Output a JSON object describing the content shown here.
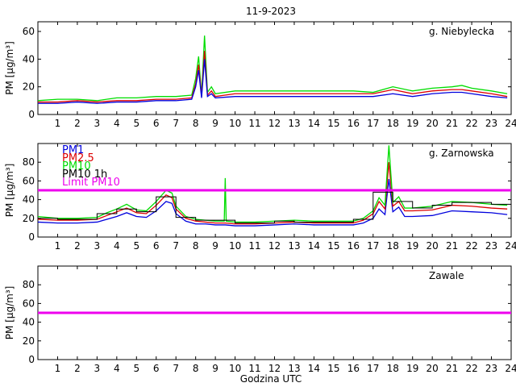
{
  "title": "11-9-2023",
  "xlabel": "Godzina UTC",
  "chart_data": [
    {
      "type": "line",
      "station": "g. Niebylecka",
      "ylabel": "PM [μg/m³]",
      "ylim": [
        0,
        67
      ],
      "yticks": [
        0,
        20,
        40,
        60
      ],
      "xlim": [
        0,
        24
      ],
      "xticks": [
        1,
        2,
        3,
        4,
        5,
        6,
        7,
        8,
        9,
        10,
        11,
        12,
        13,
        14,
        15,
        16,
        17,
        18,
        19,
        20,
        21,
        22,
        23,
        24
      ],
      "legend": false,
      "limit_line": null,
      "series": [
        {
          "key": "pm10",
          "color": "#00dd00",
          "x": [
            0,
            1,
            2,
            3,
            4,
            5,
            6,
            7,
            7.8,
            8.0,
            8.15,
            8.3,
            8.45,
            8.6,
            8.8,
            9,
            10,
            11,
            12,
            13,
            14,
            15,
            16,
            17,
            18,
            19,
            20,
            21,
            21.5,
            22,
            23,
            23.8
          ],
          "y": [
            10,
            11,
            11,
            10,
            12,
            12,
            13,
            13,
            14,
            26,
            42,
            14,
            57,
            16,
            20,
            15,
            17,
            17,
            17,
            17,
            17,
            17,
            17,
            16,
            20,
            17,
            19,
            20,
            21,
            19,
            17,
            15
          ]
        },
        {
          "key": "pm25",
          "color": "#dd0000",
          "x": [
            0,
            1,
            2,
            3,
            4,
            5,
            6,
            7,
            7.8,
            8.0,
            8.15,
            8.3,
            8.45,
            8.6,
            8.8,
            9,
            10,
            11,
            12,
            13,
            14,
            15,
            16,
            17,
            18,
            19,
            20,
            21,
            21.5,
            22,
            23,
            23.8
          ],
          "y": [
            9,
            9,
            10,
            9,
            10,
            10,
            11,
            11,
            12,
            22,
            36,
            13,
            46,
            14,
            17,
            13,
            15,
            15,
            15,
            15,
            15,
            15,
            15,
            15,
            18,
            15,
            17,
            18,
            18,
            17,
            15,
            13
          ]
        },
        {
          "key": "pm1",
          "color": "#0000dd",
          "x": [
            0,
            1,
            2,
            3,
            4,
            5,
            6,
            7,
            7.8,
            8.0,
            8.15,
            8.3,
            8.45,
            8.6,
            8.8,
            9,
            10,
            11,
            12,
            13,
            14,
            15,
            16,
            17,
            18,
            19,
            20,
            21,
            21.5,
            22,
            23,
            23.8
          ],
          "y": [
            8,
            8,
            9,
            8,
            9,
            9,
            10,
            10,
            11,
            20,
            32,
            12,
            40,
            13,
            15,
            12,
            13,
            13,
            13,
            13,
            13,
            13,
            13,
            13,
            15,
            13,
            15,
            16,
            16,
            15,
            13,
            12
          ]
        }
      ]
    },
    {
      "type": "line",
      "station": "g. Zarnowska",
      "ylabel": "PM [μg/m³]",
      "ylim": [
        0,
        100
      ],
      "yticks": [
        0,
        20,
        40,
        60,
        80
      ],
      "xlim": [
        0,
        24
      ],
      "xticks": [
        1,
        2,
        3,
        4,
        5,
        6,
        7,
        8,
        9,
        10,
        11,
        12,
        13,
        14,
        15,
        16,
        17,
        18,
        19,
        20,
        21,
        22,
        23,
        24
      ],
      "legend": true,
      "limit_line": 50,
      "series": [
        {
          "key": "pm1",
          "name": "PM1",
          "color": "#0000dd",
          "x": [
            0,
            1,
            2,
            3,
            3.5,
            4,
            4.5,
            5,
            5.5,
            6,
            6.5,
            6.8,
            7,
            7.5,
            8,
            8.5,
            9,
            9.5,
            10,
            11,
            12,
            13,
            14,
            15,
            16,
            16.5,
            17,
            17.3,
            17.6,
            17.8,
            18,
            18.3,
            18.6,
            19,
            20,
            21,
            22,
            23,
            23.8
          ],
          "y": [
            16,
            15,
            15,
            16,
            19,
            22,
            26,
            22,
            21,
            28,
            38,
            36,
            25,
            17,
            14,
            14,
            13,
            13,
            12,
            12,
            13,
            14,
            13,
            13,
            13,
            15,
            20,
            30,
            24,
            62,
            27,
            32,
            22,
            22,
            23,
            28,
            27,
            26,
            24
          ]
        },
        {
          "key": "pm25",
          "name": "PM2.5",
          "color": "#dd0000",
          "x": [
            0,
            1,
            2,
            3,
            3.5,
            4,
            4.5,
            5,
            5.5,
            6,
            6.5,
            6.8,
            7,
            7.5,
            8,
            8.5,
            9,
            9.5,
            10,
            11,
            12,
            13,
            14,
            15,
            16,
            16.5,
            17,
            17.3,
            17.6,
            17.8,
            18,
            18.3,
            18.6,
            19,
            20,
            21,
            22,
            23,
            23.8
          ],
          "y": [
            19,
            18,
            18,
            19,
            23,
            27,
            31,
            26,
            25,
            34,
            45,
            42,
            30,
            20,
            17,
            16,
            15,
            15,
            14,
            14,
            15,
            16,
            15,
            15,
            15,
            18,
            25,
            38,
            30,
            80,
            33,
            38,
            28,
            28,
            29,
            34,
            33,
            31,
            30
          ]
        },
        {
          "key": "pm10",
          "name": "PM10",
          "color": "#00dd00",
          "x": [
            0,
            1,
            2,
            3,
            3.5,
            4,
            4.5,
            5,
            5.5,
            6,
            6.5,
            6.8,
            7,
            7.5,
            8,
            8.5,
            9,
            9.45,
            9.5,
            9.55,
            10,
            11,
            12,
            13,
            14,
            15,
            16,
            16.5,
            17,
            17.3,
            17.6,
            17.8,
            18,
            18.3,
            18.6,
            19,
            20,
            21,
            22,
            23,
            23.8
          ],
          "y": [
            22,
            20,
            20,
            21,
            26,
            30,
            35,
            29,
            28,
            38,
            50,
            47,
            33,
            22,
            19,
            18,
            17,
            17,
            63,
            17,
            16,
            16,
            17,
            18,
            17,
            17,
            17,
            20,
            28,
            42,
            34,
            98,
            37,
            43,
            31,
            31,
            33,
            38,
            37,
            35,
            34
          ]
        },
        {
          "key": "pm10_1h",
          "name": "PM10 1h",
          "color": "#000000",
          "step": true,
          "x": [
            0,
            1,
            2,
            3,
            4,
            5,
            6,
            7,
            8,
            9,
            10,
            11,
            12,
            13,
            14,
            15,
            16,
            17,
            18,
            19,
            20,
            21,
            22,
            23,
            24
          ],
          "y": [
            20,
            19,
            19,
            25,
            30,
            27,
            43,
            21,
            18,
            18,
            15,
            15,
            17,
            16,
            16,
            16,
            19,
            48,
            38,
            31,
            34,
            37,
            37,
            35,
            35
          ]
        }
      ],
      "limit": {
        "name": "Limit PM10",
        "color": "#ee00ee",
        "value": 50
      }
    },
    {
      "type": "line",
      "station": "Zawale",
      "ylabel": "PM [μg/m³]",
      "ylim": [
        0,
        100
      ],
      "yticks": [
        0,
        20,
        40,
        60,
        80
      ],
      "xlim": [
        0,
        24
      ],
      "xticks": [
        1,
        2,
        3,
        4,
        5,
        6,
        7,
        8,
        9,
        10,
        11,
        12,
        13,
        14,
        15,
        16,
        17,
        18,
        19,
        20,
        21,
        22,
        23,
        24
      ],
      "legend": false,
      "limit_line": 50,
      "series": []
    }
  ]
}
